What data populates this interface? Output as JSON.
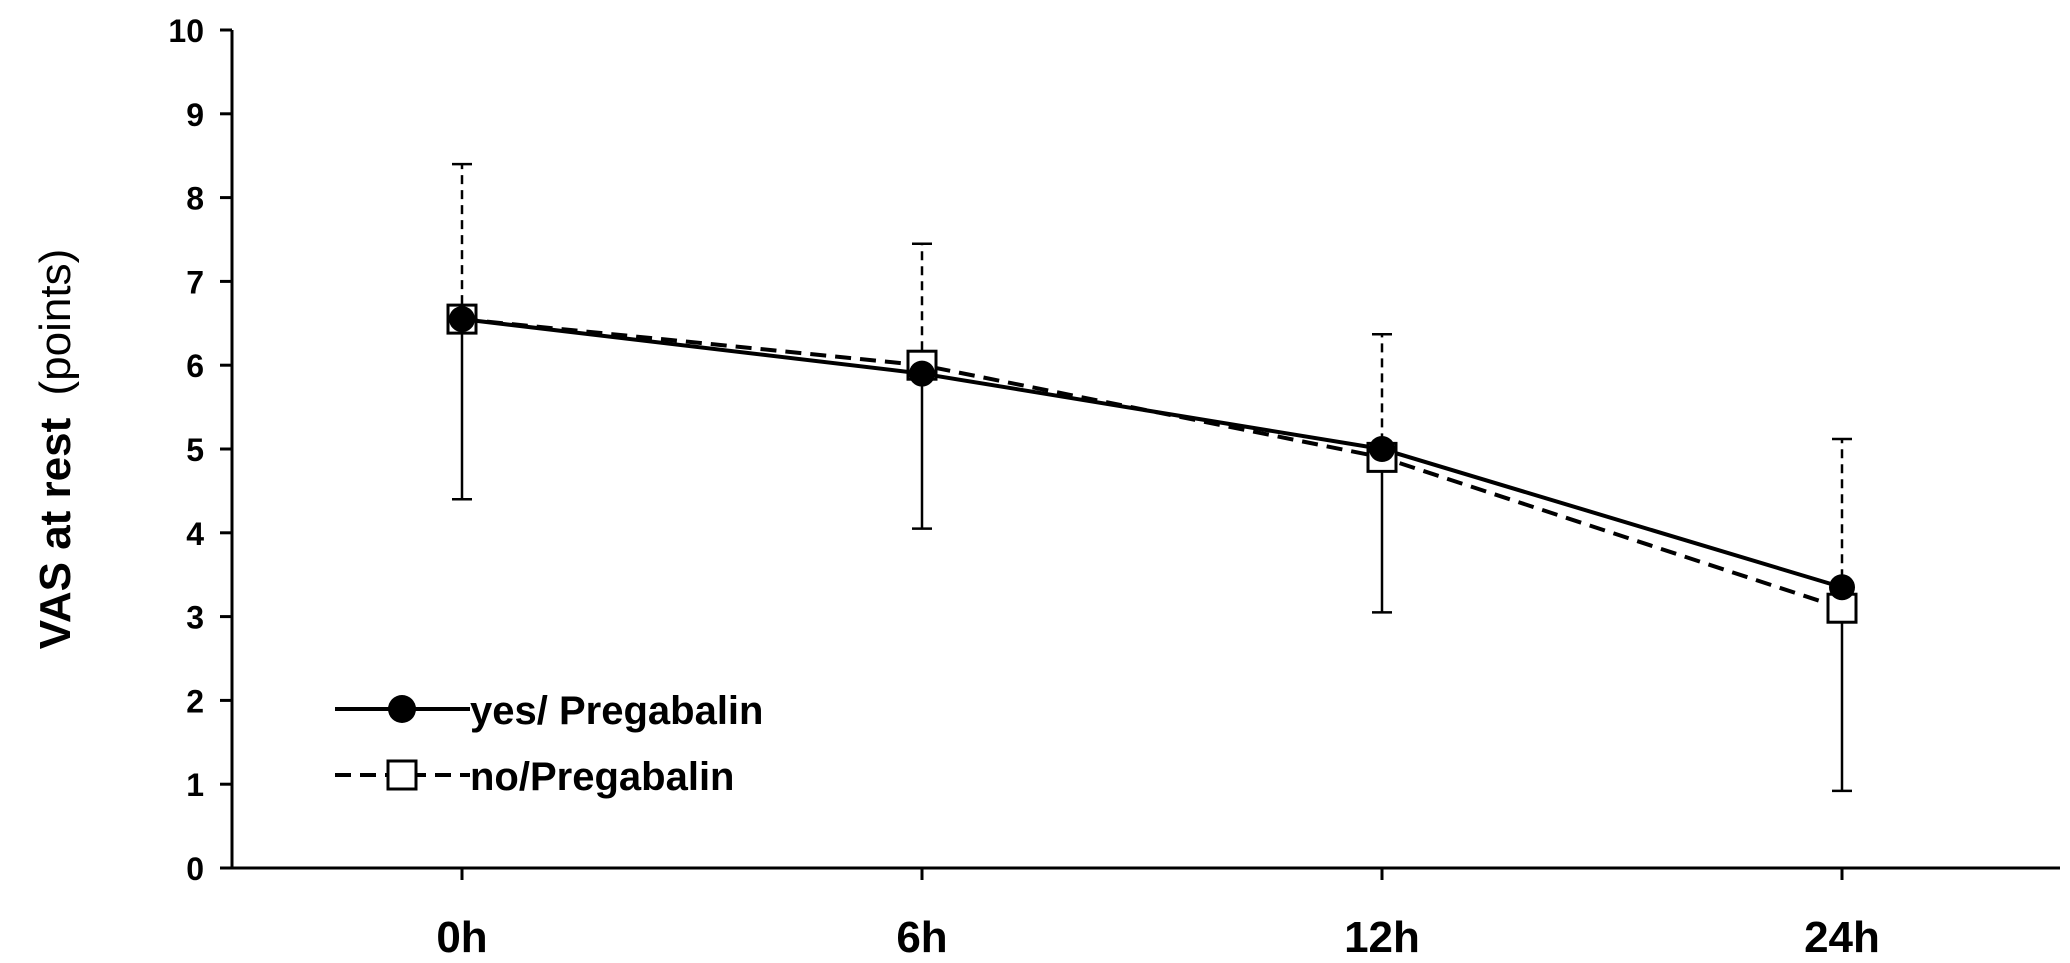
{
  "chart_data": {
    "type": "line",
    "title": "",
    "xlabel": "",
    "ylabel_bold": "VAS at rest",
    "ylabel_light": "(points)",
    "categories": [
      "0h",
      "6h",
      "12h",
      "24h"
    ],
    "yticks": [
      "0",
      "1",
      "2",
      "3",
      "4",
      "5",
      "6",
      "7",
      "8",
      "9",
      "10"
    ],
    "ylim": [
      0,
      10
    ],
    "grid": false,
    "legend_position": "bottom-left",
    "series": [
      {
        "name": "yes/ Pregabalin",
        "values": [
          6.55,
          5.9,
          5.0,
          3.35
        ],
        "error_lower": [
          4.4,
          4.05,
          3.05,
          0.92
        ],
        "marker": "filled-circle",
        "line_style": "solid",
        "color": "#000000"
      },
      {
        "name": "no/Pregabalin",
        "values": [
          6.55,
          6.0,
          4.9,
          3.1
        ],
        "error_upper": [
          8.4,
          7.45,
          6.37,
          5.12
        ],
        "marker": "open-square",
        "line_style": "dashed",
        "color": "#000000"
      }
    ]
  }
}
